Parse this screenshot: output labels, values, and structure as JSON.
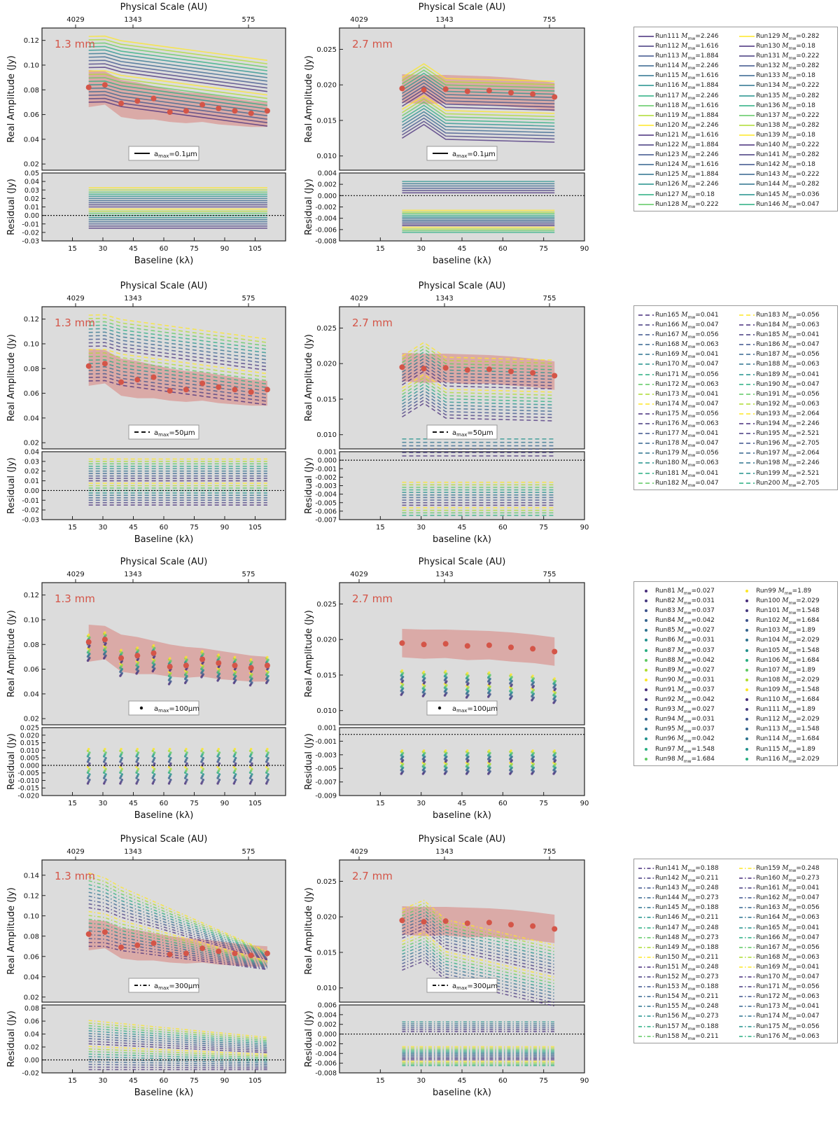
{
  "common": {
    "top_axis_title": "Physical Scale (AU)",
    "ylabel_amp": "Real Amplitude (Jy)",
    "ylabel_res": "Residual (Jy)",
    "xlabel_left": "Baseline (kλ)",
    "xlabel_right": "baseline (kλ)",
    "label_13": "1.3 mm",
    "label_27": "2.7 mm",
    "top_ticks_left": [
      "4029",
      "1343",
      "575"
    ],
    "top_ticks_right": [
      "4029",
      "1343",
      "755"
    ],
    "x_ticks_left": [
      "15",
      "30",
      "45",
      "60",
      "75",
      "90",
      "105"
    ],
    "x_ticks_right": [
      "15",
      "30",
      "45",
      "60",
      "75",
      "90"
    ],
    "colors": {
      "obs": "#d45548",
      "band": "#d99a95",
      "bg": "#dcdcdc"
    }
  },
  "rows": [
    {
      "id": "amax-0.1",
      "legend_label": "a$_{max}$=0.1μm",
      "legend_prefix": "a",
      "legend_sub": "max",
      "legend_suffix": "=0.1μm",
      "line_style": "solid",
      "runs_col1": [
        [
          "Run111",
          "2.246"
        ],
        [
          "Run112",
          "1.616"
        ],
        [
          "Run113",
          "1.884"
        ],
        [
          "Run114",
          "2.246"
        ],
        [
          "Run115",
          "1.616"
        ],
        [
          "Run116",
          "1.884"
        ],
        [
          "Run117",
          "2.246"
        ],
        [
          "Run118",
          "1.616"
        ],
        [
          "Run119",
          "1.884"
        ],
        [
          "Run120",
          "2.246"
        ],
        [
          "Run121",
          "1.616"
        ],
        [
          "Run122",
          "1.884"
        ],
        [
          "Run123",
          "2.246"
        ],
        [
          "Run124",
          "1.616"
        ],
        [
          "Run125",
          "1.884"
        ],
        [
          "Run126",
          "2.246"
        ],
        [
          "Run127",
          "0.18"
        ],
        [
          "Run128",
          "0.222"
        ]
      ],
      "runs_col2": [
        [
          "Run129",
          "0.282"
        ],
        [
          "Run130",
          "0.18"
        ],
        [
          "Run131",
          "0.222"
        ],
        [
          "Run132",
          "0.282"
        ],
        [
          "Run133",
          "0.18"
        ],
        [
          "Run134",
          "0.222"
        ],
        [
          "Run135",
          "0.282"
        ],
        [
          "Run136",
          "0.18"
        ],
        [
          "Run137",
          "0.222"
        ],
        [
          "Run138",
          "0.282"
        ],
        [
          "Run139",
          "0.18"
        ],
        [
          "Run140",
          "0.222"
        ],
        [
          "Run141",
          "0.282"
        ],
        [
          "Run142",
          "0.18"
        ],
        [
          "Run143",
          "0.222"
        ],
        [
          "Run144",
          "0.282"
        ],
        [
          "Run145",
          "0.036"
        ],
        [
          "Run146",
          "0.047"
        ]
      ],
      "mass_symbol": "M_mw"
    },
    {
      "id": "amax-50",
      "legend_prefix": "a",
      "legend_sub": "max",
      "legend_suffix": "=50μm",
      "line_style": "dashed",
      "runs_col1": [
        [
          "Run165",
          "0.041"
        ],
        [
          "Run166",
          "0.047"
        ],
        [
          "Run167",
          "0.056"
        ],
        [
          "Run168",
          "0.063"
        ],
        [
          "Run169",
          "0.041"
        ],
        [
          "Run170",
          "0.047"
        ],
        [
          "Run171",
          "0.056"
        ],
        [
          "Run172",
          "0.063"
        ],
        [
          "Run173",
          "0.041"
        ],
        [
          "Run174",
          "0.047"
        ],
        [
          "Run175",
          "0.056"
        ],
        [
          "Run176",
          "0.063"
        ],
        [
          "Run177",
          "0.041"
        ],
        [
          "Run178",
          "0.047"
        ],
        [
          "Run179",
          "0.056"
        ],
        [
          "Run180",
          "0.063"
        ],
        [
          "Run181",
          "0.041"
        ],
        [
          "Run182",
          "0.047"
        ]
      ],
      "runs_col2": [
        [
          "Run183",
          "0.056"
        ],
        [
          "Run184",
          "0.063"
        ],
        [
          "Run185",
          "0.041"
        ],
        [
          "Run186",
          "0.047"
        ],
        [
          "Run187",
          "0.056"
        ],
        [
          "Run188",
          "0.063"
        ],
        [
          "Run189",
          "0.041"
        ],
        [
          "Run190",
          "0.047"
        ],
        [
          "Run191",
          "0.056"
        ],
        [
          "Run192",
          "0.063"
        ],
        [
          "Run193",
          "2.064"
        ],
        [
          "Run194",
          "2.246"
        ],
        [
          "Run195",
          "2.521"
        ],
        [
          "Run196",
          "2.705"
        ],
        [
          "Run197",
          "2.064"
        ],
        [
          "Run198",
          "2.246"
        ],
        [
          "Run199",
          "2.521"
        ],
        [
          "Run200",
          "2.705"
        ]
      ]
    },
    {
      "id": "amax-100",
      "legend_prefix": "a",
      "legend_sub": "max",
      "legend_suffix": "=100μm",
      "line_style": "dots",
      "runs_col1": [
        [
          "Run81",
          "0.027"
        ],
        [
          "Run82",
          "0.031"
        ],
        [
          "Run83",
          "0.037"
        ],
        [
          "Run84",
          "0.042"
        ],
        [
          "Run85",
          "0.027"
        ],
        [
          "Run86",
          "0.031"
        ],
        [
          "Run87",
          "0.037"
        ],
        [
          "Run88",
          "0.042"
        ],
        [
          "Run89",
          "0.027"
        ],
        [
          "Run90",
          "0.031"
        ],
        [
          "Run91",
          "0.037"
        ],
        [
          "Run92",
          "0.042"
        ],
        [
          "Run93",
          "0.027"
        ],
        [
          "Run94",
          "0.031"
        ],
        [
          "Run95",
          "0.037"
        ],
        [
          "Run96",
          "0.042"
        ],
        [
          "Run97",
          "1.548"
        ],
        [
          "Run98",
          "1.684"
        ]
      ],
      "runs_col2": [
        [
          "Run99",
          "1.89"
        ],
        [
          "Run100",
          "2.029"
        ],
        [
          "Run101",
          "1.548"
        ],
        [
          "Run102",
          "1.684"
        ],
        [
          "Run103",
          "1.89"
        ],
        [
          "Run104",
          "2.029"
        ],
        [
          "Run105",
          "1.548"
        ],
        [
          "Run106",
          "1.684"
        ],
        [
          "Run107",
          "1.89"
        ],
        [
          "Run108",
          "2.029"
        ],
        [
          "Run109",
          "1.548"
        ],
        [
          "Run110",
          "1.684"
        ],
        [
          "Run111",
          "1.89"
        ],
        [
          "Run112",
          "2.029"
        ],
        [
          "Run113",
          "1.548"
        ],
        [
          "Run114",
          "1.684"
        ],
        [
          "Run115",
          "1.89"
        ],
        [
          "Run116",
          "2.029"
        ]
      ]
    },
    {
      "id": "amax-300",
      "legend_prefix": "a",
      "legend_sub": "max",
      "legend_suffix": "=300μm",
      "line_style": "dashdot",
      "runs_col1": [
        [
          "Run141",
          "0.188"
        ],
        [
          "Run142",
          "0.211"
        ],
        [
          "Run143",
          "0.248"
        ],
        [
          "Run144",
          "0.273"
        ],
        [
          "Run145",
          "0.188"
        ],
        [
          "Run146",
          "0.211"
        ],
        [
          "Run147",
          "0.248"
        ],
        [
          "Run148",
          "0.273"
        ],
        [
          "Run149",
          "0.188"
        ],
        [
          "Run150",
          "0.211"
        ],
        [
          "Run151",
          "0.248"
        ],
        [
          "Run152",
          "0.273"
        ],
        [
          "Run153",
          "0.188"
        ],
        [
          "Run154",
          "0.211"
        ],
        [
          "Run155",
          "0.248"
        ],
        [
          "Run156",
          "0.273"
        ],
        [
          "Run157",
          "0.188"
        ],
        [
          "Run158",
          "0.211"
        ]
      ],
      "runs_col2": [
        [
          "Run159",
          "0.248"
        ],
        [
          "Run160",
          "0.273"
        ],
        [
          "Run161",
          "0.041"
        ],
        [
          "Run162",
          "0.047"
        ],
        [
          "Run163",
          "0.056"
        ],
        [
          "Run164",
          "0.063"
        ],
        [
          "Run165",
          "0.041"
        ],
        [
          "Run166",
          "0.047"
        ],
        [
          "Run167",
          "0.056"
        ],
        [
          "Run168",
          "0.063"
        ],
        [
          "Run169",
          "0.041"
        ],
        [
          "Run170",
          "0.047"
        ],
        [
          "Run171",
          "0.056"
        ],
        [
          "Run172",
          "0.063"
        ],
        [
          "Run173",
          "0.041"
        ],
        [
          "Run174",
          "0.047"
        ],
        [
          "Run175",
          "0.056"
        ],
        [
          "Run176",
          "0.063"
        ]
      ]
    }
  ],
  "chart_data": [
    {
      "type": "line",
      "panel": "1.3 mm",
      "title": "Physical Scale (AU)",
      "xlabel": "Baseline (kλ)",
      "ylabel": "Real Amplitude (Jy)",
      "xlim": [
        0,
        120
      ],
      "ylim_amp": [
        0.015,
        0.135
      ],
      "ylim_res": [
        -0.03,
        0.05
      ],
      "observed_x": [
        23,
        31,
        39,
        47,
        55,
        63,
        71,
        79,
        87,
        95,
        103,
        111
      ],
      "observed_y": [
        0.082,
        0.084,
        0.069,
        0.071,
        0.073,
        0.062,
        0.063,
        0.068,
        0.065,
        0.063,
        0.061,
        0.063
      ],
      "band_upper": [
        0.096,
        0.095,
        0.088,
        0.086,
        0.083,
        0.08,
        0.078,
        0.077,
        0.075,
        0.073,
        0.071,
        0.07
      ],
      "band_lower": [
        0.066,
        0.068,
        0.058,
        0.056,
        0.056,
        0.054,
        0.053,
        0.054,
        0.052,
        0.051,
        0.05,
        0.05
      ],
      "res_ylim_by_row": [
        [
          -0.03,
          0.05
        ],
        [
          -0.03,
          0.04
        ],
        [
          -0.02,
          0.025
        ],
        [
          -0.02,
          0.085
        ]
      ],
      "amp_ylim_by_row": [
        [
          0.015,
          0.13
        ],
        [
          0.015,
          0.13
        ],
        [
          0.015,
          0.13
        ],
        [
          0.015,
          0.155
        ]
      ]
    },
    {
      "type": "line",
      "panel": "2.7 mm",
      "title": "Physical Scale (AU)",
      "xlabel": "baseline (kλ)",
      "ylabel": "Real Amplitude (Jy)",
      "xlim": [
        0,
        90
      ],
      "ylim_amp": [
        0.008,
        0.028
      ],
      "observed_x": [
        23,
        31,
        39,
        47,
        55,
        63,
        71,
        79
      ],
      "observed_y": [
        0.0195,
        0.0193,
        0.0194,
        0.0191,
        0.0192,
        0.0189,
        0.0187,
        0.0183
      ],
      "band_upper": [
        0.0215,
        0.0214,
        0.0214,
        0.0213,
        0.0212,
        0.021,
        0.0207,
        0.0203
      ],
      "band_lower": [
        0.0175,
        0.0173,
        0.0174,
        0.0171,
        0.0172,
        0.0169,
        0.0167,
        0.0163
      ],
      "res_ylim_by_row": [
        [
          -0.008,
          0.004
        ],
        [
          -0.007,
          0.001
        ],
        [
          -0.009,
          0.001
        ],
        [
          -0.008,
          0.006
        ]
      ]
    }
  ]
}
